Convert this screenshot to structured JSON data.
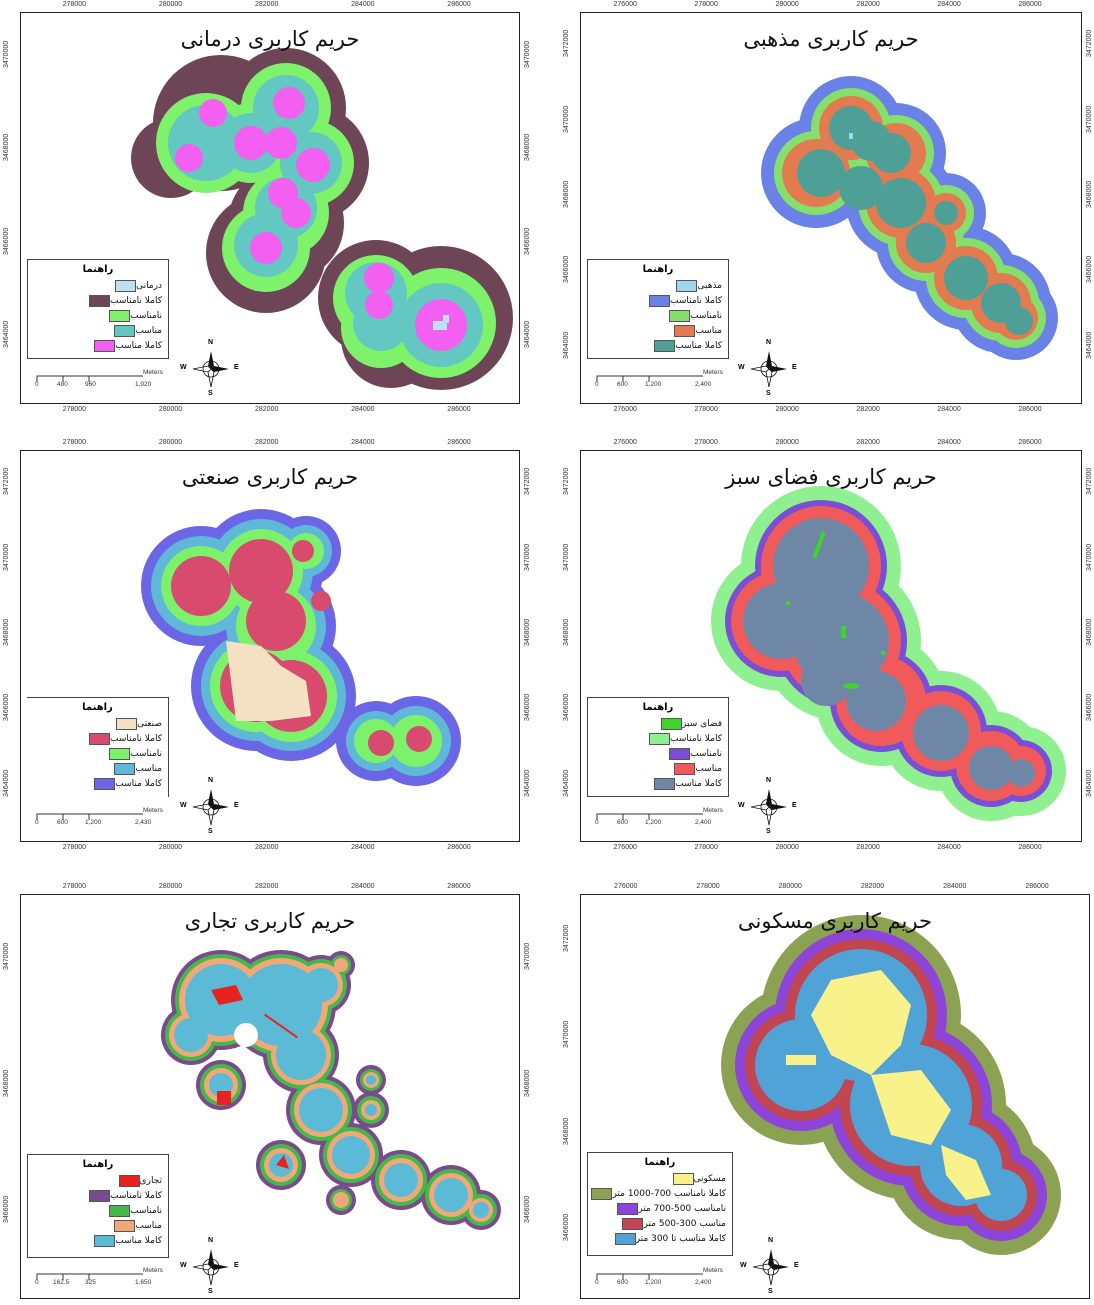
{
  "legend_title": "راهنما",
  "scale_unit": "Meters",
  "compass": {
    "n": "N",
    "s": "S",
    "e": "E",
    "w": "W"
  },
  "maps": [
    {
      "id": "medical",
      "title": "حریم کاربری درمانی",
      "top_ticks": [
        "278000",
        "280000",
        "282000",
        "284000",
        "286000"
      ],
      "bottom_ticks": [
        "278000",
        "280000",
        "282000",
        "284000",
        "286000"
      ],
      "left_ticks": [
        "3470000",
        "3468000",
        "3466000",
        "3464000"
      ],
      "right_ticks": [
        "3470000",
        "3468000",
        "3466000",
        "3464000"
      ],
      "scale_labels": [
        "0",
        "480",
        "960",
        "1,920"
      ],
      "legend": [
        {
          "label": "درمانی",
          "color": "#bde0f2"
        },
        {
          "label": "کاملا نامناسب",
          "color": "#6e4556"
        },
        {
          "label": "نامناسب",
          "color": "#7df26a"
        },
        {
          "label": "مناسب",
          "color": "#63c7c2"
        },
        {
          "label": "کاملا مناسب",
          "color": "#f35ff0"
        }
      ]
    },
    {
      "id": "religious",
      "title": "حریم کاربری مذهبی",
      "top_ticks": [
        "276000",
        "278000",
        "280000",
        "282000",
        "284000",
        "286000"
      ],
      "bottom_ticks": [
        "276000",
        "278000",
        "280000",
        "282000",
        "284000",
        "286000"
      ],
      "left_ticks": [
        "3472000",
        "3470000",
        "3468000",
        "3466000",
        "3464000"
      ],
      "right_ticks": [
        "3472000",
        "3470000",
        "3468000",
        "3466000",
        "3464000"
      ],
      "scale_labels": [
        "0",
        "600",
        "1,200",
        "2,400"
      ],
      "legend": [
        {
          "label": "مذهبی",
          "color": "#9fd7ee"
        },
        {
          "label": "کاملا نامناسب",
          "color": "#6a82e8"
        },
        {
          "label": "نامناسب",
          "color": "#84e06a"
        },
        {
          "label": "مناسب",
          "color": "#e47a4f"
        },
        {
          "label": "کاملا مناسب",
          "color": "#4e9f96"
        }
      ]
    },
    {
      "id": "industrial",
      "title": "حریم کاربری صنعتی",
      "top_ticks": [
        "278000",
        "280000",
        "282000",
        "284000",
        "286000"
      ],
      "bottom_ticks": [
        "278000",
        "280000",
        "282000",
        "284000",
        "286000"
      ],
      "left_ticks": [
        "3472000",
        "3470000",
        "3468000",
        "3466000",
        "3464000"
      ],
      "right_ticks": [
        "3472000",
        "3470000",
        "3468000",
        "3466000",
        "3464000"
      ],
      "scale_labels": [
        "0",
        "600",
        "1,200",
        "2,430"
      ],
      "legend": [
        {
          "label": "صنعتی",
          "color": "#f4e0c2"
        },
        {
          "label": "کاملا نامناسب",
          "color": "#d84a6e"
        },
        {
          "label": "نامناسب",
          "color": "#7cf26a"
        },
        {
          "label": "مناسب",
          "color": "#5fb8d8"
        },
        {
          "label": "کاملا مناسب",
          "color": "#6a66e6"
        }
      ]
    },
    {
      "id": "green",
      "title": "حریم کاربری فضای سبز",
      "top_ticks": [
        "276000",
        "278000",
        "280000",
        "282000",
        "284000",
        "286000"
      ],
      "bottom_ticks": [
        "276000",
        "278000",
        "280000",
        "282000",
        "284000",
        "286000"
      ],
      "left_ticks": [
        "3472000",
        "3470000",
        "3468000",
        "3466000",
        "3464000"
      ],
      "right_ticks": [
        "3472000",
        "3470000",
        "3468000",
        "3466000",
        "3464000"
      ],
      "scale_labels": [
        "0",
        "600",
        "1,200",
        "2,400"
      ],
      "legend": [
        {
          "label": "فضای سبز",
          "color": "#3fd42a"
        },
        {
          "label": "کاملا نامناسب",
          "color": "#8ef08e"
        },
        {
          "label": "نامناسب",
          "color": "#7a4fd6"
        },
        {
          "label": "مناسب",
          "color": "#f05a5a"
        },
        {
          "label": "کاملا مناسب",
          "color": "#6f87a6"
        }
      ]
    },
    {
      "id": "commercial",
      "title": "حریم کاربری تجاری",
      "top_ticks": [
        "278000",
        "280000",
        "282000",
        "284000",
        "286000"
      ],
      "bottom_ticks": [],
      "left_ticks": [
        "3470000",
        "3468000",
        "3466000"
      ],
      "right_ticks": [
        "3470000",
        "3468000",
        "3466000"
      ],
      "scale_labels": [
        "0",
        "162.5",
        "325",
        "1,650"
      ],
      "legend": [
        {
          "label": "تجاری",
          "color": "#e8231f"
        },
        {
          "label": "کاملا نامناسب",
          "color": "#7a4a8e"
        },
        {
          "label": "نامناسب",
          "color": "#45b84a"
        },
        {
          "label": "مناسب",
          "color": "#f0a878"
        },
        {
          "label": "کاملا مناسب",
          "color": "#5bbbd6"
        }
      ]
    },
    {
      "id": "residential",
      "title": "حریم کاربری مسکونی",
      "top_ticks": [
        "276000",
        "278000",
        "280000",
        "282000",
        "284000",
        "286000"
      ],
      "bottom_ticks": [],
      "left_ticks": [
        "3472000",
        "3470000",
        "3468000",
        "3466000"
      ],
      "right_ticks": [],
      "scale_labels": [
        "0",
        "600",
        "1,200",
        "2,400"
      ],
      "legend": [
        {
          "label": "مسکونی",
          "color": "#f9f28a"
        },
        {
          "label": "کاملا نامناسب 700-1000 متر",
          "color": "#8ba253"
        },
        {
          "label": "نامناسب 500-700 متر",
          "color": "#8c45d8"
        },
        {
          "label": "مناسب 300-500 متر",
          "color": "#c24552"
        },
        {
          "label": "کاملا مناسب تا 300 متر",
          "color": "#4fa3d6"
        }
      ]
    }
  ]
}
